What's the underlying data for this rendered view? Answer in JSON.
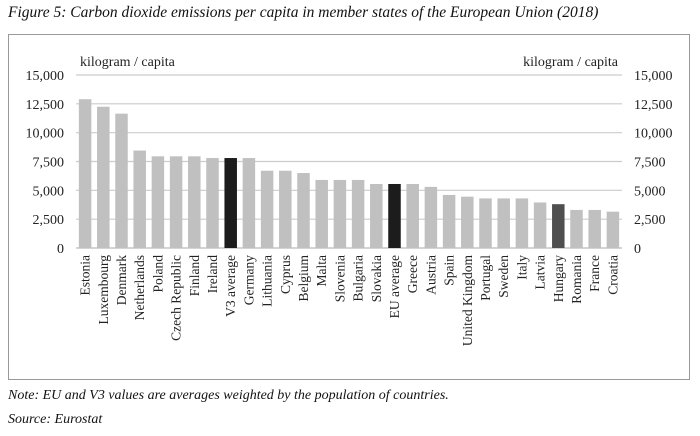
{
  "title": "Figure 5: Carbon dioxide emissions per capita in member states of the European Union (2018)",
  "note": "Note: EU and V3 values are averages weighted by the population of countries.",
  "source": "Source: Eurostat",
  "chart_data": {
    "type": "bar",
    "title": "",
    "ylabel_left": "kilogram / capita",
    "ylabel_right": "kilogram / capita",
    "ylim": [
      0,
      15000
    ],
    "yticks": [
      "0",
      "2,500",
      "5,000",
      "7,500",
      "10,000",
      "12,500",
      "15,000"
    ],
    "grid": true,
    "categories": [
      "Estonia",
      "Luxembourg",
      "Denmark",
      "Netherlands",
      "Poland",
      "Czech Republic",
      "Finland",
      "Ireland",
      "V3 average",
      "Germany",
      "Lithuania",
      "Cyprus",
      "Belgium",
      "Malta",
      "Slovenia",
      "Bulgaria",
      "Slovakia",
      "EU average",
      "Greece",
      "Austria",
      "Spain",
      "United Kingdom",
      "Portugal",
      "Sweden",
      "Italy",
      "Latvia",
      "Hungary",
      "Romania",
      "France",
      "Croatia"
    ],
    "values": [
      12900,
      12250,
      11650,
      8450,
      7950,
      7950,
      7950,
      7800,
      7800,
      7800,
      6700,
      6700,
      6500,
      5900,
      5900,
      5900,
      5550,
      5550,
      5550,
      5300,
      4600,
      4450,
      4300,
      4300,
      4300,
      3950,
      3800,
      3300,
      3300,
      3150
    ],
    "colors": {
      "default": "#c0c0c0",
      "V3 average": "#1c1c1c",
      "EU average": "#1c1c1c",
      "Hungary": "#4f4f4f"
    }
  }
}
